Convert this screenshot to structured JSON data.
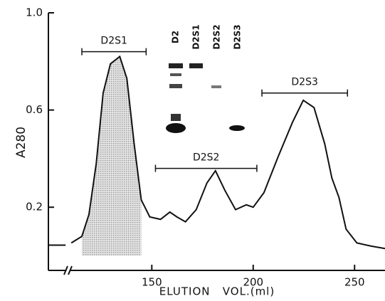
{
  "chart_data": {
    "type": "line",
    "x_label": "ELUTION   VOL.(ml)",
    "y_label": "A280",
    "xlim": [
      99,
      265
    ],
    "ylim": [
      -0.06,
      1.0
    ],
    "xticks": [
      150,
      200,
      250
    ],
    "yticks": [
      0.2,
      0.6,
      {
        "value": 1.0,
        "label": "1.0"
      }
    ],
    "x": [
      99,
      107.5,
      109,
      110.3,
      115.5,
      119,
      122.6,
      126,
      129.6,
      134.2,
      137.7,
      141.3,
      144.8,
      149,
      154.3,
      158.9,
      162.4,
      166.6,
      171.9,
      177.2,
      181.4,
      186,
      191.3,
      196.6,
      200,
      205.3,
      212.4,
      219.4,
      224.7,
      230,
      235.3,
      238.8,
      242.3,
      245.8,
      251.1,
      258.2,
      265
    ],
    "series": [
      {
        "color": "#111111",
        "values": [
          0.044,
          0.044,
          null,
          0.053,
          0.08,
          0.17,
          0.38,
          0.67,
          0.79,
          0.82,
          0.73,
          0.46,
          0.23,
          0.16,
          0.15,
          0.18,
          0.16,
          0.14,
          0.19,
          0.3,
          0.35,
          0.27,
          0.19,
          0.21,
          0.2,
          0.26,
          0.41,
          0.55,
          0.64,
          0.61,
          0.46,
          0.32,
          0.24,
          0.11,
          0.053,
          0.04,
          0.03
        ]
      }
    ],
    "annotations": [
      {
        "text": "D2S1",
        "x": [
          115.5,
          147.2
        ],
        "y": 0.84
      },
      {
        "text": "D2S2",
        "x": [
          151.8,
          201.8
        ],
        "y": 0.36
      },
      {
        "text": "D2S3",
        "x": [
          204.3,
          246.5
        ],
        "y": 0.67
      }
    ],
    "gel_lanes": [
      "D2",
      "D2S1",
      "D2S2",
      "D2S3"
    ]
  }
}
